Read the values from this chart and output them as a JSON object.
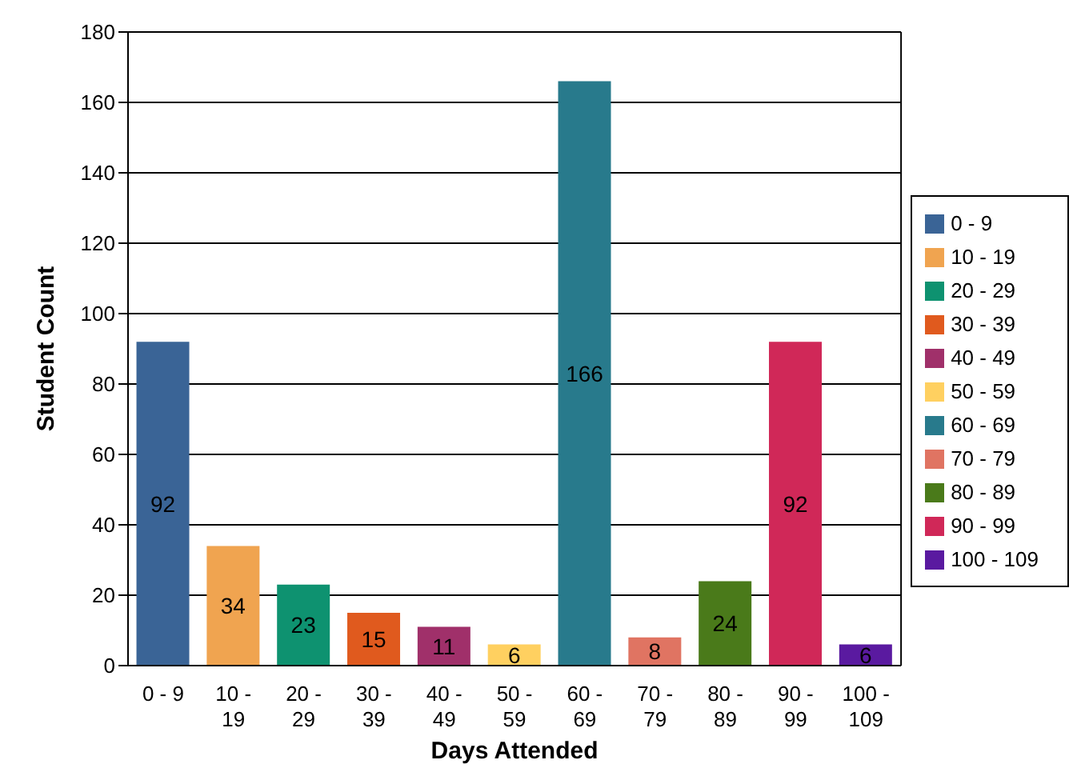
{
  "chart_data": {
    "type": "bar",
    "xlabel": "Days Attended",
    "ylabel": "Student Count",
    "stacked": true,
    "categories": [
      "0 - 9",
      "10 - 19",
      "20 - 29",
      "30 - 39",
      "40 - 49",
      "50 - 59",
      "60 - 69",
      "70 - 79",
      "80 - 89",
      "90 - 99",
      "100 - 109"
    ],
    "series": [
      {
        "name": "0 - 9",
        "color": "#3a6496",
        "values": [
          92,
          null,
          null,
          null,
          null,
          null,
          null,
          null,
          null,
          null,
          null
        ]
      },
      {
        "name": "10 - 19",
        "color": "#f0a450",
        "values": [
          null,
          34,
          null,
          null,
          null,
          null,
          null,
          null,
          null,
          null,
          null
        ]
      },
      {
        "name": "20 - 29",
        "color": "#0e9270",
        "values": [
          null,
          null,
          23,
          null,
          null,
          null,
          null,
          null,
          null,
          null,
          null
        ]
      },
      {
        "name": "30 - 39",
        "color": "#e05a1e",
        "values": [
          null,
          null,
          null,
          15,
          null,
          null,
          null,
          null,
          null,
          null,
          null
        ]
      },
      {
        "name": "40 - 49",
        "color": "#a0306a",
        "values": [
          null,
          null,
          null,
          null,
          11,
          null,
          null,
          null,
          null,
          null,
          null
        ]
      },
      {
        "name": "50 - 59",
        "color": "#ffd060",
        "values": [
          null,
          null,
          null,
          null,
          null,
          6,
          null,
          null,
          null,
          null,
          null
        ]
      },
      {
        "name": "60 - 69",
        "color": "#287a8c",
        "values": [
          null,
          null,
          null,
          null,
          null,
          null,
          166,
          null,
          null,
          null,
          null
        ]
      },
      {
        "name": "70 - 79",
        "color": "#e07462",
        "values": [
          null,
          null,
          null,
          null,
          null,
          null,
          null,
          8,
          null,
          null,
          null
        ]
      },
      {
        "name": "80 - 89",
        "color": "#4a7a1a",
        "values": [
          null,
          null,
          null,
          null,
          null,
          null,
          null,
          null,
          24,
          null,
          null
        ]
      },
      {
        "name": "90 - 99",
        "color": "#d02858",
        "values": [
          null,
          null,
          null,
          null,
          null,
          null,
          null,
          null,
          null,
          92,
          null
        ]
      },
      {
        "name": "100 - 109",
        "color": "#5a1aa0",
        "values": [
          null,
          null,
          null,
          null,
          null,
          null,
          null,
          null,
          null,
          null,
          6
        ]
      }
    ],
    "ylim": [
      0,
      180
    ],
    "yticks": [
      0,
      20,
      40,
      60,
      80,
      100,
      120,
      140,
      160,
      180
    ],
    "grid": "y",
    "legend": "right",
    "data_labels": true
  }
}
